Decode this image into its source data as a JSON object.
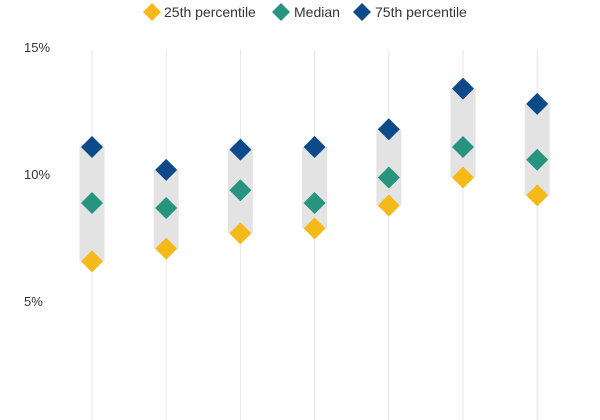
{
  "chart_data": {
    "type": "scatter",
    "subtype": "range-dot",
    "title": "",
    "xlabel": "",
    "ylabel": "",
    "categories": [
      "",
      "",
      "",
      "",
      "",
      "",
      ""
    ],
    "ylim": [
      0,
      15
    ],
    "y_ticks": [
      {
        "value": 15,
        "label": "15%"
      },
      {
        "value": 10,
        "label": "10%"
      },
      {
        "value": 5,
        "label": "5%"
      }
    ],
    "grid": "vertical",
    "legend": "top",
    "range_band_color": "#e3e3e3",
    "gridline_color": "#e6e6e6",
    "text_color": "#333333",
    "series": [
      {
        "name": "25th percentile",
        "color": "#f6b91a",
        "marker": "diamond",
        "values": [
          6.6,
          7.1,
          7.7,
          7.9,
          8.8,
          9.9,
          9.2
        ]
      },
      {
        "name": "Median",
        "color": "#26947f",
        "marker": "diamond",
        "values": [
          8.9,
          8.7,
          9.4,
          8.9,
          9.9,
          11.1,
          10.6
        ]
      },
      {
        "name": "75th percentile",
        "color": "#0d4a8a",
        "marker": "diamond",
        "values": [
          11.1,
          10.2,
          11.0,
          11.1,
          11.8,
          13.4,
          12.8
        ]
      }
    ]
  }
}
